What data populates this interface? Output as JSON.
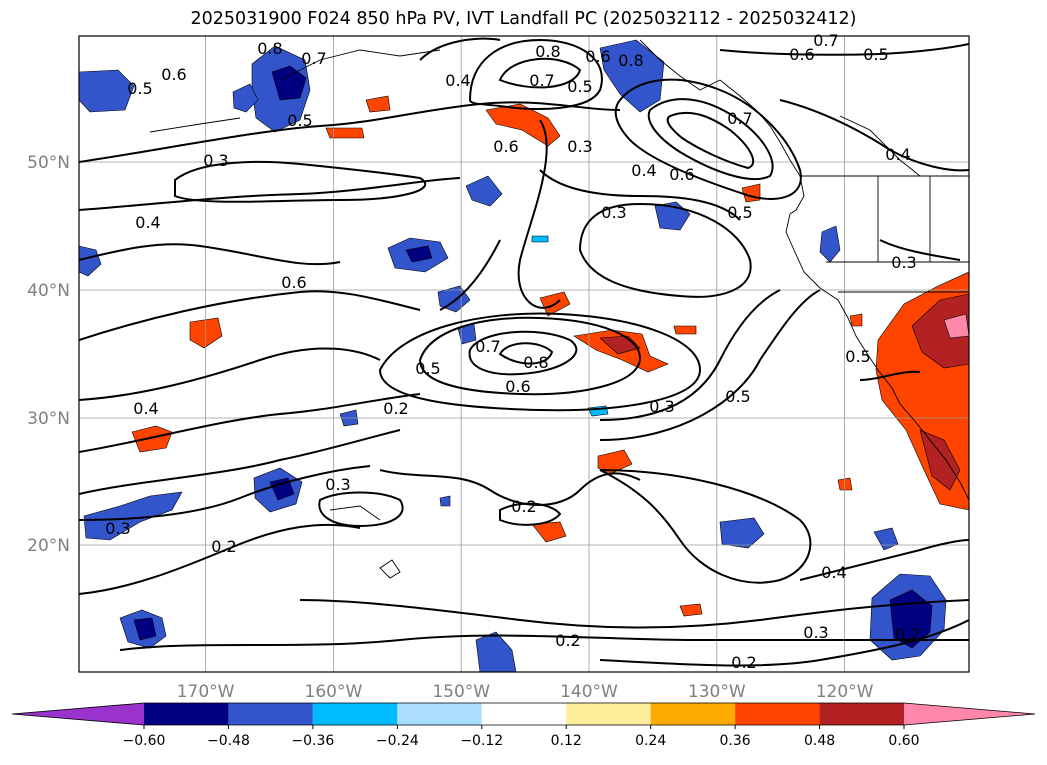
{
  "title": "2025031900 F024 850 hPa PV, IVT Landfall PC (2025032112 - 2025032412)",
  "lat_labels": [
    "50°N",
    "40°N",
    "30°N",
    "20°N"
  ],
  "lon_labels": [
    "170°W",
    "160°W",
    "150°W",
    "140°W",
    "130°W",
    "120°W"
  ],
  "contour_labels": [
    "0.8",
    "0.7",
    "0.6",
    "0.5",
    "0.5",
    "0.4",
    "0.8",
    "0.7",
    "0.5",
    "0.6",
    "0.8",
    "0.7",
    "0.6",
    "0.5",
    "0.7",
    "0.6",
    "0.3",
    "0.4",
    "0.4",
    "0.6",
    "0.3",
    "0.5",
    "0.4",
    "0.3",
    "0.3",
    "0.6",
    "0.7",
    "0.8",
    "0.5",
    "0.6",
    "0.4",
    "0.2",
    "0.3",
    "0.5",
    "0.3",
    "0.2",
    "0.2",
    "0.3",
    "0.5",
    "0.2",
    "0.4",
    "0.3",
    "0.2",
    "0.2"
  ],
  "colorbar": {
    "tick_labels": [
      "−0.60",
      "−0.48",
      "−0.36",
      "−0.24",
      "−0.12",
      "0.12",
      "0.24",
      "0.36",
      "0.48",
      "0.60"
    ],
    "colors": [
      "#9933cc",
      "#000080",
      "#3355cc",
      "#00bbff",
      "#aaddff",
      "#ffffff",
      "#ffee99",
      "#ffaa00",
      "#ff4400",
      "#b22222",
      "#ff88aa"
    ]
  }
}
